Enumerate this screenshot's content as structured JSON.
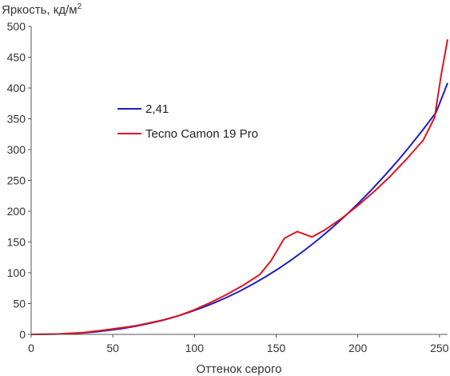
{
  "chart_data": {
    "type": "line",
    "title": "",
    "xlabel": "Оттенок серого",
    "ylabel": "Яркость, кд/м",
    "ylabel_sup": "2",
    "xlim": [
      0,
      255
    ],
    "ylim": [
      0,
      500
    ],
    "x_ticks": [
      0,
      50,
      100,
      150,
      200,
      250
    ],
    "y_ticks": [
      0,
      50,
      100,
      150,
      200,
      250,
      300,
      350,
      400,
      450,
      500
    ],
    "grid": false,
    "legend_position": "center-left",
    "series": [
      {
        "name": "2,41",
        "color": "#1f1fbf",
        "x": [
          0,
          8,
          16,
          24,
          32,
          40,
          48,
          56,
          64,
          72,
          80,
          88,
          96,
          104,
          112,
          120,
          128,
          136,
          144,
          152,
          160,
          168,
          176,
          184,
          192,
          200,
          208,
          216,
          224,
          232,
          240,
          248,
          255
        ],
        "y": [
          0,
          0.1,
          0.5,
          1.3,
          2.5,
          4.3,
          6.7,
          9.6,
          13.2,
          17.6,
          22.6,
          28.5,
          35.2,
          42.7,
          51.1,
          60.4,
          70.7,
          82,
          94.3,
          107.7,
          122.2,
          137.8,
          154.6,
          172.5,
          191.6,
          211.9,
          233.5,
          256.3,
          280.4,
          305.8,
          332.6,
          360.7,
          408
        ]
      },
      {
        "name": "Tecno Camon 19 Pro",
        "color": "#e0141e",
        "x": [
          0,
          16,
          32,
          48,
          64,
          80,
          90,
          100,
          110,
          120,
          130,
          140,
          147,
          155,
          163,
          172,
          180,
          190,
          200,
          210,
          220,
          230,
          240,
          247,
          251,
          255
        ],
        "y": [
          0,
          0.6,
          3,
          8,
          14,
          23,
          30,
          40,
          52,
          65,
          80,
          97,
          120,
          156,
          167,
          158,
          170,
          188,
          209,
          232,
          257,
          285,
          315,
          352,
          420,
          479
        ]
      }
    ]
  }
}
